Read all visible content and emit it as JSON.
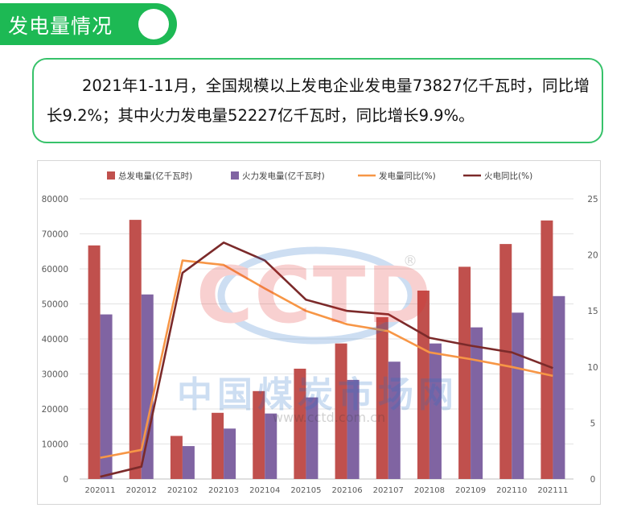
{
  "header": {
    "title": "发电量情况"
  },
  "summary": {
    "text": "2021年1-11月，全国规模以上发电企业发电量73827亿千瓦时，同比增长9.2%；其中火力发电量52227亿千瓦时，同比增长9.9%。"
  },
  "watermark": {
    "logo_text": "CCTD",
    "registered": "®",
    "cn_text": "中国煤炭市场网",
    "url": "www.cctd.com.cn"
  },
  "colors": {
    "header_green": "#1db954",
    "box_border": "#37c26a",
    "total_bar": "#c0504d",
    "thermal_bar": "#8064a2",
    "gen_yoy_line": "#f79646",
    "thermal_yoy_line": "#7b2a2a"
  },
  "chart_data": {
    "type": "bar",
    "categories": [
      "202011",
      "202012",
      "202102",
      "202103",
      "202104",
      "202105",
      "202106",
      "202107",
      "202108",
      "202109",
      "202110",
      "202111"
    ],
    "series": [
      {
        "name": "总发电量(亿千瓦时)",
        "kind": "bar",
        "axis": "left",
        "color": "#c0504d",
        "values": [
          66700,
          74000,
          12300,
          18900,
          25100,
          31500,
          38700,
          46200,
          53800,
          60600,
          67100,
          73827
        ]
      },
      {
        "name": "火力发电量(亿千瓦时)",
        "kind": "bar",
        "axis": "left",
        "color": "#8064a2",
        "values": [
          47000,
          52700,
          9400,
          14400,
          18700,
          23300,
          28300,
          33500,
          38700,
          43300,
          47500,
          52227
        ]
      },
      {
        "name": "发电量同比(%)",
        "kind": "line",
        "axis": "right",
        "color": "#f79646",
        "values": [
          1.9,
          2.6,
          19.5,
          19.1,
          17.0,
          15.0,
          13.8,
          13.2,
          11.3,
          10.7,
          10.0,
          9.2
        ]
      },
      {
        "name": "火电同比(%)",
        "kind": "line",
        "axis": "right",
        "color": "#7b2a2a",
        "values": [
          0.2,
          1.1,
          18.4,
          21.1,
          19.5,
          16.0,
          15.0,
          14.7,
          12.6,
          11.9,
          11.3,
          9.9
        ]
      }
    ],
    "left_axis": {
      "min": 0,
      "max": 80000,
      "ticks": [
        0,
        10000,
        20000,
        30000,
        40000,
        50000,
        60000,
        70000,
        80000
      ]
    },
    "right_axis": {
      "min": 0,
      "max": 25,
      "ticks": [
        0,
        5,
        10,
        15,
        20,
        25
      ]
    },
    "grid": true,
    "legend_position": "top"
  }
}
